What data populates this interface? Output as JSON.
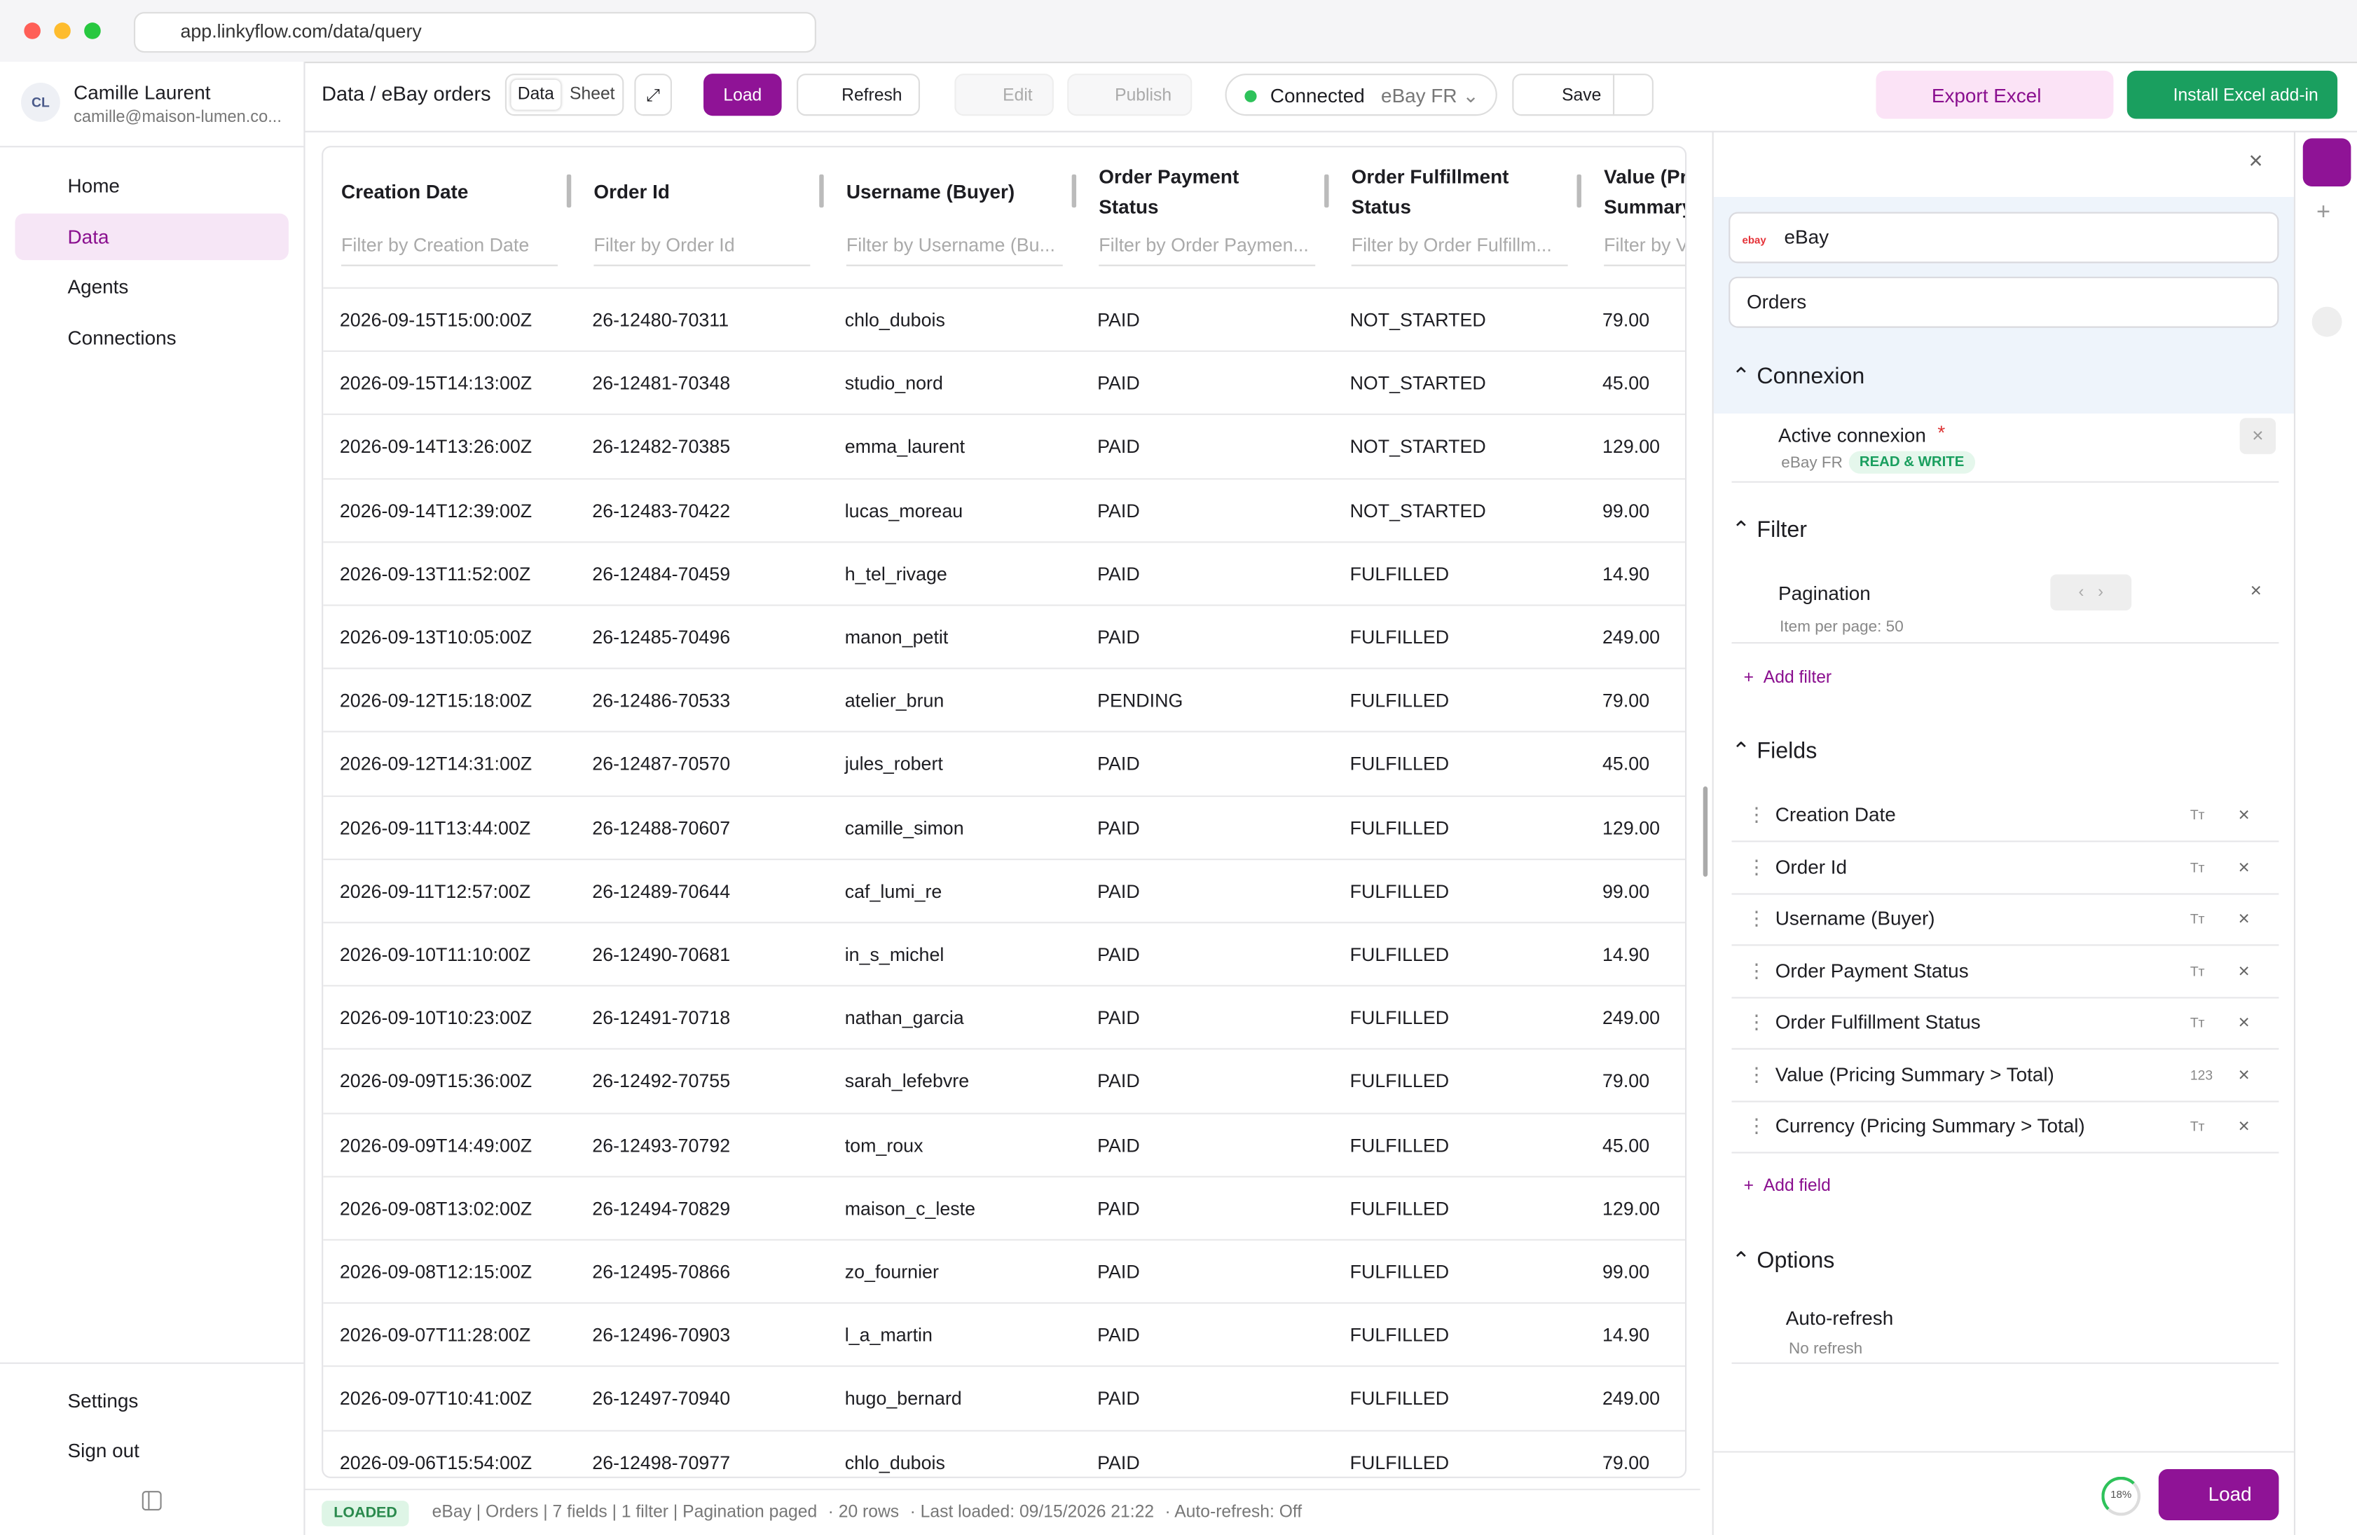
{
  "browser": {
    "url": "app.linkyflow.com/data/query"
  },
  "user": {
    "initials": "CL",
    "name": "Camille Laurent",
    "email": "camille@maison-lumen.co..."
  },
  "nav": [
    "Home",
    "Data",
    "Agents",
    "Connections"
  ],
  "nav_bottom": [
    "Settings",
    "Sign out"
  ],
  "toolbar": {
    "breadcrumb": "Data / eBay orders",
    "tabs": [
      "Data",
      "Sheet"
    ],
    "load": "Load",
    "refresh": "Refresh",
    "edit": "Edit",
    "publish": "Publish",
    "status": "Connected",
    "connection": "eBay FR",
    "save": "Save",
    "export": "Export Excel",
    "install": "Install Excel add-in"
  },
  "table": {
    "columns": [
      {
        "header": "Creation Date",
        "filter": "Filter by Creation Date"
      },
      {
        "header": "Order Id",
        "filter": "Filter by Order Id"
      },
      {
        "header": "Username (Buyer)",
        "filter": "Filter by Username (Bu..."
      },
      {
        "header": "Order Payment Status",
        "filter": "Filter by Order Paymen..."
      },
      {
        "header": "Order Fulfillment Status",
        "filter": "Filter by Order Fulfillm..."
      },
      {
        "header": "Value (Pricing Summary > Total)",
        "filter": "Filter by Value"
      }
    ],
    "rows": [
      [
        "2026-09-15T15:00:00Z",
        "26-12480-70311",
        "chlo_dubois",
        "PAID",
        "NOT_STARTED",
        "79.00"
      ],
      [
        "2026-09-15T14:13:00Z",
        "26-12481-70348",
        "studio_nord",
        "PAID",
        "NOT_STARTED",
        "45.00"
      ],
      [
        "2026-09-14T13:26:00Z",
        "26-12482-70385",
        "emma_laurent",
        "PAID",
        "NOT_STARTED",
        "129.00"
      ],
      [
        "2026-09-14T12:39:00Z",
        "26-12483-70422",
        "lucas_moreau",
        "PAID",
        "NOT_STARTED",
        "99.00"
      ],
      [
        "2026-09-13T11:52:00Z",
        "26-12484-70459",
        "h_tel_rivage",
        "PAID",
        "FULFILLED",
        "14.90"
      ],
      [
        "2026-09-13T10:05:00Z",
        "26-12485-70496",
        "manon_petit",
        "PAID",
        "FULFILLED",
        "249.00"
      ],
      [
        "2026-09-12T15:18:00Z",
        "26-12486-70533",
        "atelier_brun",
        "PENDING",
        "FULFILLED",
        "79.00"
      ],
      [
        "2026-09-12T14:31:00Z",
        "26-12487-70570",
        "jules_robert",
        "PAID",
        "FULFILLED",
        "45.00"
      ],
      [
        "2026-09-11T13:44:00Z",
        "26-12488-70607",
        "camille_simon",
        "PAID",
        "FULFILLED",
        "129.00"
      ],
      [
        "2026-09-11T12:57:00Z",
        "26-12489-70644",
        "caf_lumi_re",
        "PAID",
        "FULFILLED",
        "99.00"
      ],
      [
        "2026-09-10T11:10:00Z",
        "26-12490-70681",
        "in_s_michel",
        "PAID",
        "FULFILLED",
        "14.90"
      ],
      [
        "2026-09-10T10:23:00Z",
        "26-12491-70718",
        "nathan_garcia",
        "PAID",
        "FULFILLED",
        "249.00"
      ],
      [
        "2026-09-09T15:36:00Z",
        "26-12492-70755",
        "sarah_lefebvre",
        "PAID",
        "FULFILLED",
        "79.00"
      ],
      [
        "2026-09-09T14:49:00Z",
        "26-12493-70792",
        "tom_roux",
        "PAID",
        "FULFILLED",
        "45.00"
      ],
      [
        "2026-09-08T13:02:00Z",
        "26-12494-70829",
        "maison_c_leste",
        "PAID",
        "FULFILLED",
        "129.00"
      ],
      [
        "2026-09-08T12:15:00Z",
        "26-12495-70866",
        "zo_fournier",
        "PAID",
        "FULFILLED",
        "99.00"
      ],
      [
        "2026-09-07T11:28:00Z",
        "26-12496-70903",
        "l_a_martin",
        "PAID",
        "FULFILLED",
        "14.90"
      ],
      [
        "2026-09-07T10:41:00Z",
        "26-12497-70940",
        "hugo_bernard",
        "PAID",
        "FULFILLED",
        "249.00"
      ],
      [
        "2026-09-06T15:54:00Z",
        "26-12498-70977",
        "chlo_dubois",
        "PAID",
        "FULFILLED",
        "79.00"
      ]
    ]
  },
  "statusbar": {
    "badge": "LOADED",
    "summary": "eBay | Orders | 7 fields | 1 filter | Pagination paged",
    "rows": "· 20 rows",
    "last_loaded": "· Last loaded: 09/15/2026 21:22",
    "auto_refresh": "· Auto-refresh: Off"
  },
  "panel": {
    "source": "eBay",
    "object": "Orders",
    "connexion": {
      "title": "Connexion",
      "label": "Active connexion",
      "required": "*",
      "name": "eBay FR",
      "badge": "READ & WRITE"
    },
    "filter": {
      "title": "Filter",
      "label": "Pagination",
      "detail": "Item per page: 50",
      "add": "Add filter"
    },
    "fields": {
      "title": "Fields",
      "items": [
        {
          "name": "Creation Date",
          "type": "Tт"
        },
        {
          "name": "Order Id",
          "type": "Tт"
        },
        {
          "name": "Username (Buyer)",
          "type": "Tт"
        },
        {
          "name": "Order Payment Status",
          "type": "Tт"
        },
        {
          "name": "Order Fulfillment Status",
          "type": "Tт"
        },
        {
          "name": "Value (Pricing Summary > Total)",
          "type": "123"
        },
        {
          "name": "Currency (Pricing Summary > Total)",
          "type": "Tт"
        }
      ],
      "add": "Add field"
    },
    "options": {
      "title": "Options",
      "label": "Auto-refresh",
      "detail": "No refresh"
    },
    "progress": "18%",
    "load": "Load"
  }
}
